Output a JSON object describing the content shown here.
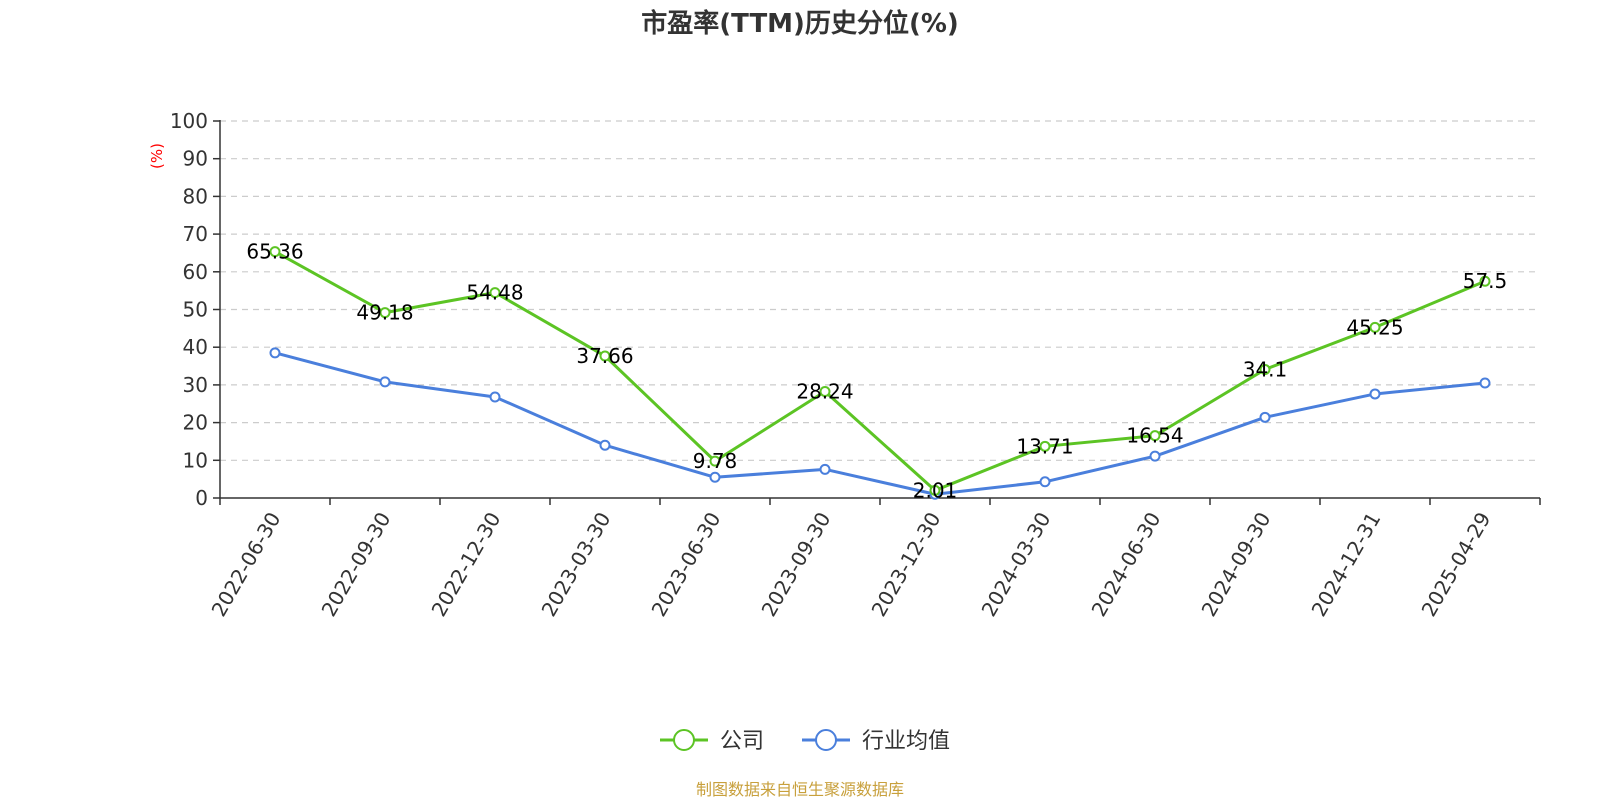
{
  "chart_data": {
    "type": "line",
    "title": "市盈率(TTM)历史分位(%)",
    "ylabel": "(%)",
    "xlabel": "",
    "ylim": [
      0,
      100
    ],
    "y_ticks": [
      0,
      10,
      20,
      30,
      40,
      50,
      60,
      70,
      80,
      90,
      100
    ],
    "grid": true,
    "legend_position": "bottom-center",
    "categories": [
      "2022-06-30",
      "2022-09-30",
      "2022-12-30",
      "2023-03-30",
      "2023-06-30",
      "2023-09-30",
      "2023-12-30",
      "2024-03-30",
      "2024-06-30",
      "2024-09-30",
      "2024-12-31",
      "2025-04-29"
    ],
    "series": [
      {
        "name": "公司",
        "color": "#5cc424",
        "values": [
          65.36,
          49.18,
          54.48,
          37.66,
          9.78,
          28.24,
          2.01,
          13.71,
          16.54,
          34.1,
          45.25,
          57.5
        ],
        "labels": [
          "65.36",
          "49.18",
          "54.48",
          "37.66",
          "9.78",
          "28.24",
          "2.01",
          "13.71",
          "16.54",
          "34.1",
          "45.25",
          "57.5"
        ]
      },
      {
        "name": "行业均值",
        "color": "#4a7fdc",
        "values": [
          38.5,
          30.8,
          26.8,
          14.0,
          5.5,
          7.6,
          1.0,
          4.3,
          11.1,
          21.4,
          27.6,
          30.5
        ]
      }
    ],
    "source": "制图数据来自恒生聚源数据库"
  }
}
